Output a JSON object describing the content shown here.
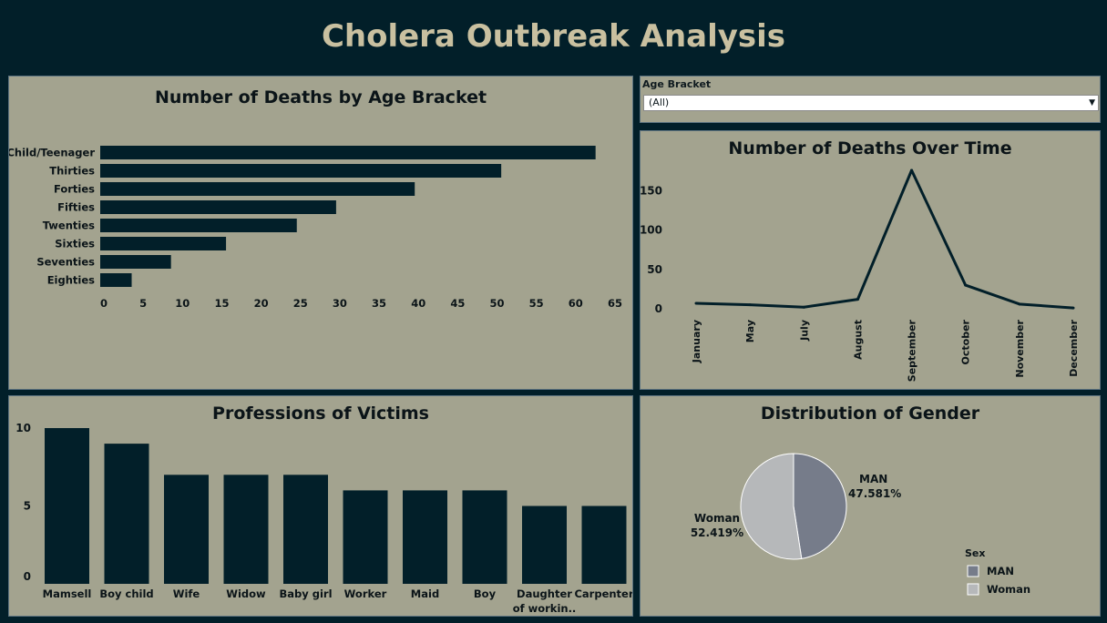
{
  "dashboard": {
    "title": "Cholera Outbreak Analysis"
  },
  "filter": {
    "label": "Age Bracket",
    "value": "(All)"
  },
  "colors": {
    "bar": "#021f29",
    "panel": "#a3a38f",
    "man": "#767c8a",
    "woman": "#b6b8ba"
  },
  "chart_data": [
    {
      "type": "bar",
      "orientation": "horizontal",
      "title": "Number of Deaths by Age Bracket",
      "categories": [
        "Child/Teenager",
        "Thirties",
        "Forties",
        "Fifties",
        "Twenties",
        "Sixties",
        "Seventies",
        "Eighties"
      ],
      "values": [
        63,
        51,
        40,
        30,
        25,
        16,
        9,
        4
      ],
      "xlim": [
        0,
        65
      ],
      "xticks": [
        "0",
        "5",
        "10",
        "15",
        "20",
        "25",
        "30",
        "35",
        "40",
        "45",
        "50",
        "55",
        "60",
        "65"
      ]
    },
    {
      "type": "line",
      "title": "Number of Deaths Over Time",
      "categories": [
        "January",
        "May",
        "July",
        "August",
        "September",
        "October",
        "November",
        "December"
      ],
      "values": [
        7,
        5,
        2,
        12,
        176,
        30,
        6,
        1
      ],
      "ylim": [
        0,
        176
      ],
      "yticks": [
        "0",
        "50",
        "100",
        "150"
      ]
    },
    {
      "type": "bar",
      "title": "Professions of Victims",
      "categories": [
        "Mamsell",
        "Boy child",
        "Wife",
        "Widow",
        "Baby girl",
        "Worker",
        "Maid",
        "Boy",
        "Daughter|of workin..",
        "Carpenter"
      ],
      "values": [
        10,
        9,
        7,
        7,
        7,
        6,
        6,
        6,
        5,
        5
      ],
      "ylim": [
        0,
        10
      ],
      "yticks": [
        "0",
        "5",
        "10"
      ]
    },
    {
      "type": "pie",
      "title": "Distribution of Gender",
      "slices": [
        {
          "name": "MAN",
          "value": 47.581,
          "label": "47.581%"
        },
        {
          "name": "Woman",
          "value": 52.419,
          "label": "52.419%"
        }
      ],
      "legend_title": "Sex",
      "legend": [
        "MAN",
        "Woman"
      ]
    }
  ]
}
